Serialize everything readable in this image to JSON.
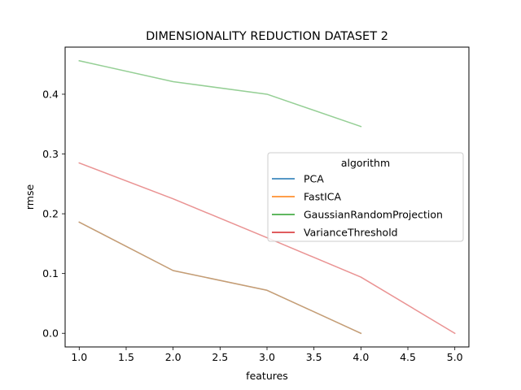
{
  "chart_data": {
    "type": "line",
    "title": "DIMENSIONALITY REDUCTION DATASET 2",
    "xlabel": "features",
    "ylabel": "rmse",
    "xlim": [
      0.85,
      5.15
    ],
    "ylim": [
      -0.0228,
      0.4788
    ],
    "x_ticks": [
      1.0,
      1.5,
      2.0,
      2.5,
      3.0,
      3.5,
      4.0,
      4.5,
      5.0
    ],
    "y_ticks": [
      0.0,
      0.1,
      0.2,
      0.3,
      0.4
    ],
    "grid": false,
    "legend": {
      "title": "algorithm",
      "placement": "center-right"
    },
    "series": [
      {
        "name": "PCA",
        "color": "#1f77b4",
        "alpha": 0.5,
        "x": [
          1,
          2,
          3,
          4
        ],
        "y": [
          0.186,
          0.105,
          0.072,
          0.0
        ]
      },
      {
        "name": "FastICA",
        "color": "#ff7f0e",
        "alpha": 0.5,
        "x": [
          1,
          2,
          3,
          4
        ],
        "y": [
          0.186,
          0.105,
          0.072,
          0.0
        ]
      },
      {
        "name": "GaussianRandomProjection",
        "color": "#2ca02c",
        "alpha": 0.5,
        "x": [
          1,
          2,
          3,
          4
        ],
        "y": [
          0.456,
          0.421,
          0.4,
          0.346
        ]
      },
      {
        "name": "VarianceThreshold",
        "color": "#d62728",
        "alpha": 0.5,
        "x": [
          1,
          2,
          3,
          4,
          5
        ],
        "y": [
          0.285,
          0.225,
          0.16,
          0.094,
          0.0
        ]
      }
    ]
  }
}
